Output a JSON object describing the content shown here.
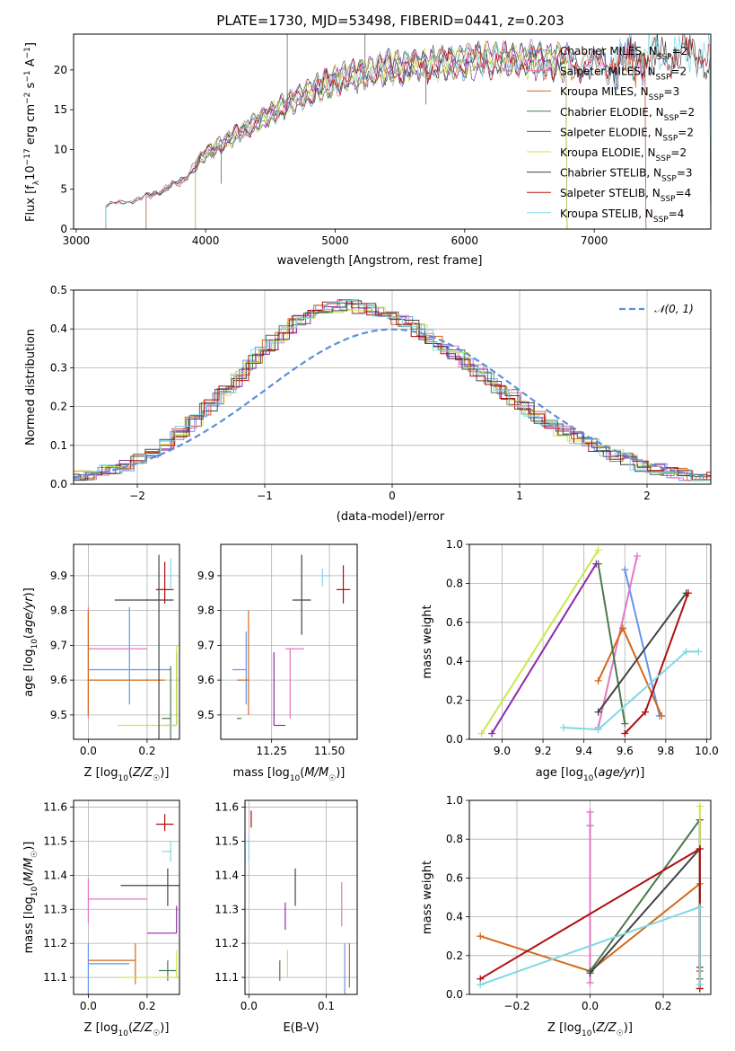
{
  "title": "PLATE=1730, MJD=53498, FIBERID=0441, z=0.203",
  "colors": {
    "Chabrier MILES": "#6495ed",
    "Salpeter MILES": "#e377c2",
    "Kroupa MILES": "#d2691e",
    "Chabrier ELODIE": "#4a7a4a",
    "Salpeter ELODIE": "#8e2aa8",
    "Kroupa ELODIE": "#cbe84a",
    "Chabrier STELIB": "#444444",
    "Salpeter STELIB": "#b01010",
    "Kroupa STELIB": "#7fd8e4",
    "normal": "#5b8fd9",
    "grid": "#b0b0b0"
  },
  "chart_data": [
    {
      "id": "spectrum",
      "type": "line",
      "title": "PLATE=1730, MJD=53498, FIBERID=0441, z=0.203",
      "xlabel": "wavelength [Angstrom, rest frame]",
      "ylabel": "Flux [f",
      "xlim": [
        2980,
        7900
      ],
      "ylim": [
        0,
        24.5
      ],
      "xticks": [
        3000,
        4000,
        5000,
        6000,
        7000
      ],
      "yticks": [
        0,
        5,
        10,
        15,
        20
      ],
      "grid": false,
      "legend_position": "upper right",
      "series": [
        {
          "name": "Chabrier MILES",
          "nssp": "2",
          "start": 3540,
          "end": 7400
        },
        {
          "name": "Salpeter MILES",
          "nssp": "2",
          "start": 3540,
          "end": 7400
        },
        {
          "name": "Kroupa MILES",
          "nssp": "3",
          "start": 3540,
          "end": 7400
        },
        {
          "name": "Chabrier ELODIE",
          "nssp": "2",
          "start": 3920,
          "end": 6790
        },
        {
          "name": "Salpeter ELODIE",
          "nssp": "2",
          "start": 3920,
          "end": 6790
        },
        {
          "name": "Kroupa ELODIE",
          "nssp": "2",
          "start": 3920,
          "end": 6790
        },
        {
          "name": "Chabrier STELIB",
          "nssp": "3",
          "start": 3230,
          "end": 7900
        },
        {
          "name": "Salpeter STELIB",
          "nssp": "4",
          "start": 3230,
          "end": 7900
        },
        {
          "name": "Kroupa STELIB",
          "nssp": "4",
          "start": 3230,
          "end": 7900
        }
      ],
      "continuum": {
        "x": [
          3230,
          3500,
          3800,
          4000,
          4300,
          4600,
          5000,
          5400,
          5800,
          6200,
          6600,
          7000,
          7400,
          7900
        ],
        "y": [
          3.0,
          3.8,
          5.8,
          9.5,
          12.5,
          15.5,
          18.8,
          20.2,
          20.8,
          21.3,
          21.2,
          20.6,
          21.5,
          22.0
        ]
      }
    },
    {
      "id": "residuals",
      "type": "line",
      "xlabel": "(data-model)/error",
      "ylabel": "Normed distribution",
      "xlim": [
        -2.5,
        2.5
      ],
      "ylim": [
        0,
        0.5
      ],
      "xticks": [
        -2,
        -1,
        0,
        1,
        2
      ],
      "yticks": [
        0.0,
        0.1,
        0.2,
        0.3,
        0.4,
        0.5
      ],
      "grid": true,
      "legend": [
        "𝒩(0, 1)"
      ],
      "legend_position": "upper right",
      "normal_curve": {
        "mean": 0,
        "sigma": 1
      },
      "histogram_shape": {
        "center": -0.4,
        "width": 0.8,
        "amplitude": 0.46
      }
    },
    {
      "id": "age_vs_Z",
      "type": "scatter",
      "xlabel": "Z [log10(Z/Z☉)]",
      "ylabel": "age  [log10(age/yr)]",
      "xlim": [
        -0.05,
        0.31
      ],
      "ylim": [
        9.43,
        9.99
      ],
      "xticks": [
        0.0,
        0.2
      ],
      "yticks": [
        9.5,
        9.6,
        9.7,
        9.8,
        9.9
      ],
      "grid": true,
      "points": [
        {
          "model": "Chabrier MILES",
          "x": 0.14,
          "xerr": [
            0.14,
            0.14
          ],
          "y": 9.63,
          "yerr": [
            0.1,
            0.18
          ]
        },
        {
          "model": "Salpeter MILES",
          "x": 0.0,
          "xerr": [
            0.0,
            0.2
          ],
          "y": 9.69,
          "yerr": [
            0.2,
            0.12
          ]
        },
        {
          "model": "Kroupa MILES",
          "x": 0.0,
          "xerr": [
            0.0,
            0.26
          ],
          "y": 9.6,
          "yerr": [
            0.1,
            0.2
          ]
        },
        {
          "model": "Chabrier ELODIE",
          "x": 0.28,
          "xerr": [
            0.03,
            0.0
          ],
          "y": 9.49,
          "yerr": [
            0.06,
            0.15
          ]
        },
        {
          "model": "Salpeter ELODIE",
          "x": 0.3,
          "xerr": [
            0.04,
            0.0
          ],
          "y": 9.47,
          "yerr": [
            0.0,
            0.21
          ]
        },
        {
          "model": "Kroupa ELODIE",
          "x": 0.3,
          "xerr": [
            0.2,
            0.0
          ],
          "y": 9.47,
          "yerr": [
            0.0,
            0.23
          ]
        },
        {
          "model": "Chabrier STELIB",
          "x": 0.24,
          "xerr": [
            0.15,
            0.05
          ],
          "y": 9.83,
          "yerr": [
            0.43,
            0.13
          ]
        },
        {
          "model": "Salpeter STELIB",
          "x": 0.26,
          "xerr": [
            0.03,
            0.03
          ],
          "y": 9.86,
          "yerr": [
            0.04,
            0.08
          ]
        },
        {
          "model": "Kroupa STELIB",
          "x": 0.28,
          "xerr": [
            0.0,
            0.0
          ],
          "y": 9.9,
          "yerr": [
            0.04,
            0.05
          ]
        }
      ]
    },
    {
      "id": "age_vs_mass",
      "type": "scatter",
      "xlabel": "mass [log10(M/M☉)]",
      "ylabel": "",
      "xlim": [
        11.03,
        11.62
      ],
      "ylim": [
        9.43,
        9.99
      ],
      "xticks": [
        11.25,
        11.5
      ],
      "yticks": [
        9.5,
        9.6,
        9.7,
        9.8,
        9.9
      ],
      "grid": true,
      "points": [
        {
          "model": "Chabrier MILES",
          "x": 11.14,
          "xerr": [
            0.06,
            0.0
          ],
          "y": 9.63,
          "yerr": [
            0.1,
            0.11
          ]
        },
        {
          "model": "Salpeter MILES",
          "x": 11.33,
          "xerr": [
            0.02,
            0.06
          ],
          "y": 9.69,
          "yerr": [
            0.2,
            0.0
          ]
        },
        {
          "model": "Kroupa MILES",
          "x": 11.15,
          "xerr": [
            0.05,
            0.0
          ],
          "y": 9.6,
          "yerr": [
            0.1,
            0.2
          ]
        },
        {
          "model": "Chabrier ELODIE",
          "x": 11.12,
          "xerr": [
            0.02,
            0.0
          ],
          "y": 9.49,
          "yerr": [
            0.0,
            0.0
          ]
        },
        {
          "model": "Salpeter ELODIE",
          "x": 11.26,
          "xerr": [
            0.0,
            0.05
          ],
          "y": 9.47,
          "yerr": [
            0.0,
            0.21
          ]
        },
        {
          "model": "Kroupa ELODIE",
          "x": 11.1,
          "xerr": [
            0.0,
            0.0
          ],
          "y": 9.48,
          "yerr": [
            0.0,
            0.0
          ]
        },
        {
          "model": "Chabrier STELIB",
          "x": 11.38,
          "xerr": [
            0.04,
            0.04
          ],
          "y": 9.83,
          "yerr": [
            0.1,
            0.13
          ]
        },
        {
          "model": "Salpeter STELIB",
          "x": 11.56,
          "xerr": [
            0.03,
            0.03
          ],
          "y": 9.86,
          "yerr": [
            0.04,
            0.07
          ]
        },
        {
          "model": "Kroupa STELIB",
          "x": 11.47,
          "xerr": [
            0.0,
            0.03
          ],
          "y": 9.9,
          "yerr": [
            0.03,
            0.02
          ]
        }
      ]
    },
    {
      "id": "weight_vs_age",
      "type": "line",
      "xlabel": "age  [log10(age/yr)]",
      "ylabel": "mass weight",
      "xlim": [
        8.84,
        10.02
      ],
      "ylim": [
        0.0,
        1.0
      ],
      "xticks": [
        9.0,
        9.2,
        9.4,
        9.6,
        9.8,
        10.0
      ],
      "yticks": [
        0.0,
        0.2,
        0.4,
        0.6,
        0.8,
        1.0
      ],
      "grid": true,
      "series": [
        {
          "model": "Chabrier MILES",
          "x": [
            9.6,
            9.77
          ],
          "y": [
            0.87,
            0.12
          ]
        },
        {
          "model": "Salpeter MILES",
          "x": [
            9.47,
            9.66
          ],
          "y": [
            0.06,
            0.94
          ]
        },
        {
          "model": "Kroupa MILES",
          "x": [
            9.47,
            9.59,
            9.78
          ],
          "y": [
            0.3,
            0.57,
            0.12
          ]
        },
        {
          "model": "Chabrier ELODIE",
          "x": [
            9.47,
            9.6
          ],
          "y": [
            0.9,
            0.08
          ]
        },
        {
          "model": "Salpeter ELODIE",
          "x": [
            8.95,
            9.46
          ],
          "y": [
            0.03,
            0.9
          ]
        },
        {
          "model": "Kroupa ELODIE",
          "x": [
            8.9,
            9.47
          ],
          "y": [
            0.03,
            0.97
          ]
        },
        {
          "model": "Chabrier STELIB",
          "x": [
            9.47,
            9.9
          ],
          "y": [
            0.14,
            0.75
          ]
        },
        {
          "model": "Salpeter STELIB",
          "x": [
            9.6,
            9.7,
            9.91
          ],
          "y": [
            0.03,
            0.14,
            0.75
          ]
        },
        {
          "model": "Kroupa STELIB",
          "x": [
            9.3,
            9.47,
            9.9,
            9.96
          ],
          "y": [
            0.06,
            0.05,
            0.45,
            0.45
          ]
        }
      ]
    },
    {
      "id": "mass_vs_Z",
      "type": "scatter",
      "xlabel": "Z [log10(Z/Z☉)]",
      "ylabel": "mass [log10(M/M☉)]",
      "xlim": [
        -0.05,
        0.31
      ],
      "ylim": [
        11.05,
        11.62
      ],
      "xticks": [
        0.0,
        0.2
      ],
      "yticks": [
        11.1,
        11.2,
        11.3,
        11.4,
        11.5,
        11.6
      ],
      "grid": true,
      "points": [
        {
          "model": "Chabrier MILES",
          "x": 0.0,
          "xerr": [
            0.0,
            0.14
          ],
          "y": 11.14,
          "yerr": [
            0.09,
            0.06
          ]
        },
        {
          "model": "Salpeter MILES",
          "x": 0.0,
          "xerr": [
            0.0,
            0.2
          ],
          "y": 11.33,
          "yerr": [
            0.07,
            0.06
          ]
        },
        {
          "model": "Kroupa MILES",
          "x": 0.16,
          "xerr": [
            0.16,
            0.0
          ],
          "y": 11.15,
          "yerr": [
            0.07,
            0.05
          ]
        },
        {
          "model": "Chabrier ELODIE",
          "x": 0.27,
          "xerr": [
            0.03,
            0.03
          ],
          "y": 11.12,
          "yerr": [
            0.03,
            0.03
          ]
        },
        {
          "model": "Salpeter ELODIE",
          "x": 0.3,
          "xerr": [
            0.1,
            0.0
          ],
          "y": 11.23,
          "yerr": [
            0.0,
            0.08
          ]
        },
        {
          "model": "Kroupa ELODIE",
          "x": 0.3,
          "xerr": [
            0.2,
            0.0
          ],
          "y": 11.1,
          "yerr": [
            0.0,
            0.08
          ]
        },
        {
          "model": "Chabrier STELIB",
          "x": 0.27,
          "xerr": [
            0.16,
            0.04
          ],
          "y": 11.37,
          "yerr": [
            0.06,
            0.05
          ]
        },
        {
          "model": "Salpeter STELIB",
          "x": 0.26,
          "xerr": [
            0.03,
            0.03
          ],
          "y": 11.55,
          "yerr": [
            0.02,
            0.03
          ]
        },
        {
          "model": "Kroupa STELIB",
          "x": 0.28,
          "xerr": [
            0.03,
            0.0
          ],
          "y": 11.47,
          "yerr": [
            0.03,
            0.03
          ]
        }
      ]
    },
    {
      "id": "mass_vs_ebv",
      "type": "scatter",
      "xlabel": "E(B-V)",
      "ylabel": "",
      "xlim": [
        -0.005,
        0.14
      ],
      "ylim": [
        11.05,
        11.62
      ],
      "xticks": [
        0.0,
        0.1
      ],
      "yticks": [
        11.1,
        11.2,
        11.3,
        11.4,
        11.5,
        11.6
      ],
      "grid": true,
      "points": [
        {
          "model": "Chabrier MILES",
          "x": 0.124,
          "xerr": [
            0.0,
            0.0
          ],
          "y": 11.14,
          "yerr": [
            0.09,
            0.06
          ]
        },
        {
          "model": "Salpeter MILES",
          "x": 0.12,
          "xerr": [
            0.0,
            0.0
          ],
          "y": 11.32,
          "yerr": [
            0.07,
            0.06
          ]
        },
        {
          "model": "Kroupa MILES",
          "x": 0.13,
          "xerr": [
            0.0,
            0.0
          ],
          "y": 11.15,
          "yerr": [
            0.08,
            0.05
          ]
        },
        {
          "model": "Chabrier ELODIE",
          "x": 0.04,
          "xerr": [
            0.0,
            0.0
          ],
          "y": 11.12,
          "yerr": [
            0.03,
            0.03
          ]
        },
        {
          "model": "Salpeter ELODIE",
          "x": 0.047,
          "xerr": [
            0.0,
            0.0
          ],
          "y": 11.28,
          "yerr": [
            0.04,
            0.04
          ]
        },
        {
          "model": "Kroupa ELODIE",
          "x": 0.05,
          "xerr": [
            0.0,
            0.0
          ],
          "y": 11.14,
          "yerr": [
            0.04,
            0.04
          ]
        },
        {
          "model": "Chabrier STELIB",
          "x": 0.06,
          "xerr": [
            0.0,
            0.0
          ],
          "y": 11.37,
          "yerr": [
            0.06,
            0.05
          ]
        },
        {
          "model": "Salpeter STELIB",
          "x": 0.003,
          "xerr": [
            0.0,
            0.0
          ],
          "y": 11.56,
          "yerr": [
            0.02,
            0.03
          ]
        },
        {
          "model": "Kroupa STELIB",
          "x": 0.0,
          "xerr": [
            0.0,
            0.0
          ],
          "y": 11.48,
          "yerr": [
            0.04,
            0.03
          ]
        }
      ]
    },
    {
      "id": "weight_vs_Z",
      "type": "line",
      "xlabel": "Z [log10(Z/Z☉)]",
      "ylabel": "mass weight",
      "xlim": [
        -0.33,
        0.33
      ],
      "ylim": [
        0.0,
        1.0
      ],
      "xticks": [
        -0.2,
        0.0,
        0.2
      ],
      "yticks": [
        0.0,
        0.2,
        0.4,
        0.6,
        0.8,
        1.0
      ],
      "grid": true,
      "series": [
        {
          "model": "Chabrier MILES",
          "x": [
            0.0,
            0.0
          ],
          "y": [
            0.87,
            0.12
          ]
        },
        {
          "model": "Salpeter MILES",
          "x": [
            0.0,
            0.0
          ],
          "y": [
            0.94,
            0.06
          ]
        },
        {
          "model": "Kroupa MILES",
          "x": [
            -0.3,
            0.0,
            0.3,
            0.3
          ],
          "y": [
            0.3,
            0.12,
            0.57,
            0.12
          ]
        },
        {
          "model": "Chabrier ELODIE",
          "x": [
            0.0,
            0.3,
            0.3
          ],
          "y": [
            0.12,
            0.9,
            0.08
          ]
        },
        {
          "model": "Salpeter ELODIE",
          "x": [
            0.3,
            0.3
          ],
          "y": [
            0.9,
            0.03
          ]
        },
        {
          "model": "Kroupa ELODIE",
          "x": [
            0.3,
            0.3
          ],
          "y": [
            0.97,
            0.03
          ]
        },
        {
          "model": "Chabrier STELIB",
          "x": [
            0.0,
            0.3,
            0.3
          ],
          "y": [
            0.11,
            0.75,
            0.14
          ]
        },
        {
          "model": "Salpeter STELIB",
          "x": [
            -0.3,
            0.3,
            0.3
          ],
          "y": [
            0.08,
            0.75,
            0.03
          ]
        },
        {
          "model": "Kroupa STELIB",
          "x": [
            -0.3,
            0.3,
            0.3
          ],
          "y": [
            0.05,
            0.45,
            0.05
          ]
        }
      ]
    }
  ]
}
